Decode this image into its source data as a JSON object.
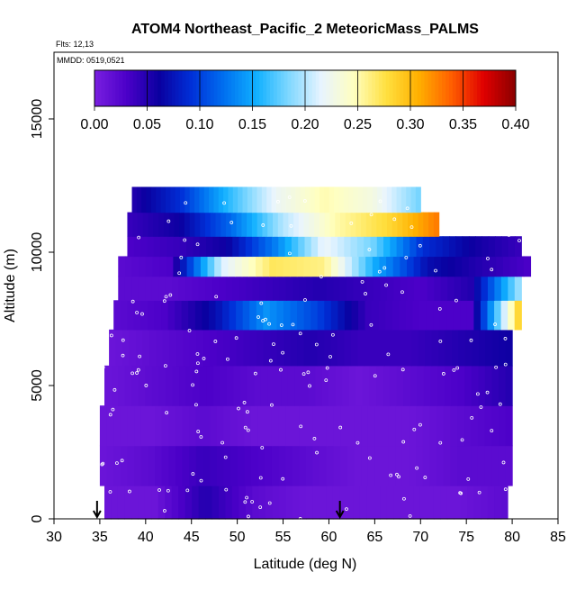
{
  "chart_data": {
    "type": "heatmap",
    "title": "ATOM4 Northeast_Pacific_2 MeteoricMass_PALMS",
    "flights_label": "Flts: 12,13",
    "dates_label": "MMDD: 0519,0521",
    "xlabel": "Latitude (deg N)",
    "ylabel": "Altitude (m)",
    "xlim": [
      30,
      85
    ],
    "ylim": [
      0,
      17500
    ],
    "x_ticks": [
      "30",
      "35",
      "40",
      "45",
      "50",
      "55",
      "60",
      "65",
      "70",
      "75",
      "80",
      "85"
    ],
    "y_ticks": [
      "0",
      "5000",
      "10000",
      "15000"
    ],
    "colorbar": {
      "range": [
        0,
        0.4
      ],
      "ticks": [
        "0.00",
        "0.05",
        "0.10",
        "0.15",
        "0.20",
        "0.25",
        "0.30",
        "0.35",
        "0.40"
      ],
      "colors": [
        "#7a1fe0",
        "#4b00c8",
        "#0a00a0",
        "#0030d8",
        "#0070f0",
        "#10b0ff",
        "#80d8ff",
        "#e8f4ff",
        "#ffffc0",
        "#ffe040",
        "#ffb000",
        "#ff6000",
        "#e00000",
        "#8a0000"
      ]
    },
    "arrows_lat": [
      34.7,
      61.2
    ],
    "latitude_edges": [
      35,
      40,
      45,
      50,
      55,
      60,
      65,
      70,
      75,
      80
    ],
    "altitude_bands": [
      {
        "alt": 12000,
        "lat_range": [
          38.5,
          70
        ],
        "values": [
          0.05,
          0.09,
          0.16,
          0.22,
          0.25,
          0.23,
          0.18
        ]
      },
      {
        "alt": 11000,
        "lat_range": [
          38,
          72
        ],
        "values": [
          0.04,
          0.06,
          0.12,
          0.2,
          0.25,
          0.28,
          0.33
        ]
      },
      {
        "alt": 10200,
        "lat_range": [
          38,
          81
        ],
        "values": [
          0.03,
          0.04,
          0.06,
          0.13,
          0.22,
          0.18,
          0.09,
          0.06,
          0.04
        ]
      },
      {
        "alt": 9500,
        "lat_range": [
          37,
          82
        ],
        "values": [
          0.02,
          0.03,
          0.21,
          0.27,
          0.26,
          0.15,
          0.07,
          0.05,
          0.03
        ]
      },
      {
        "alt": 8700,
        "lat_range": [
          37,
          81
        ],
        "values": [
          0.02,
          0.02,
          0.03,
          0.04,
          0.05,
          0.04,
          0.03,
          0.05,
          0.2
        ]
      },
      {
        "alt": 7700,
        "lat_range": [
          36.5,
          81
        ],
        "values": [
          0.02,
          0.03,
          0.07,
          0.14,
          0.1,
          0.04,
          0.03,
          0.03,
          0.3
        ]
      },
      {
        "alt": 6500,
        "lat_range": [
          36,
          80
        ],
        "values": [
          0.01,
          0.02,
          0.03,
          0.04,
          0.05,
          0.04,
          0.04,
          0.05,
          0.06
        ]
      },
      {
        "alt": 5000,
        "lat_range": [
          35.5,
          80
        ],
        "values": [
          0.01,
          0.02,
          0.03,
          0.02,
          0.02,
          0.01,
          0.02,
          0.03,
          0.05
        ]
      },
      {
        "alt": 3500,
        "lat_range": [
          35,
          80
        ],
        "values": [
          0.01,
          0.01,
          0.02,
          0.01,
          0.01,
          0.01,
          0.01,
          0.02,
          0.03
        ]
      },
      {
        "alt": 2000,
        "lat_range": [
          35,
          80
        ],
        "values": [
          0.01,
          0.02,
          0.04,
          0.03,
          0.02,
          0.01,
          0.01,
          0.02,
          0.02
        ]
      },
      {
        "alt": 500,
        "lat_range": [
          35.5,
          79.5
        ],
        "values": [
          0.01,
          0.01,
          0.05,
          0.02,
          0.01,
          0.01,
          0.01,
          0.01,
          0.02
        ]
      }
    ]
  }
}
